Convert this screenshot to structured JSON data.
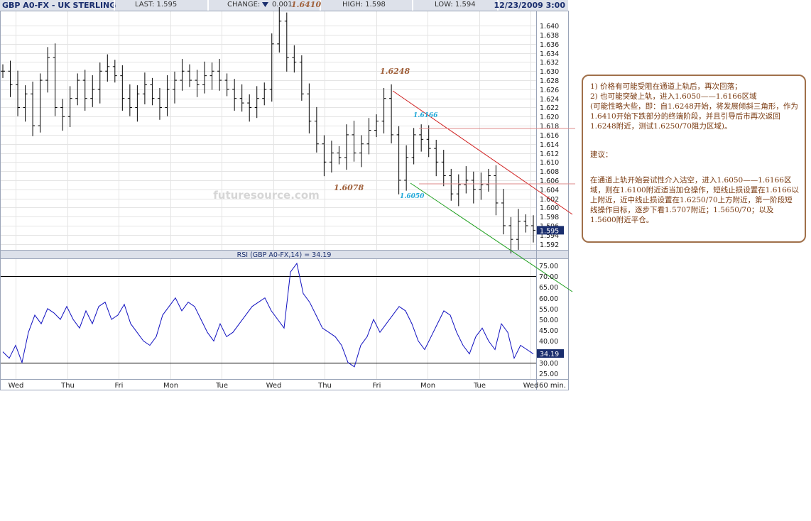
{
  "header": {
    "symbol": "GBP A0-FX - UK STERLING",
    "last": "LAST: 1.595",
    "change_label": "CHANGE:",
    "change_icon": "down-triangle-icon",
    "change_value": "0.001",
    "high": "HIGH: 1.598",
    "low": "LOW: 1.594",
    "datetime": "12/23/2009 3:00"
  },
  "watermark": "futuresource.com",
  "colors": {
    "price": "#000000",
    "rsi": "#1010c0",
    "channel_upper": "#d02020",
    "channel_lower": "#20a020",
    "annotation_brown": "#a0603a",
    "annotation_cyan": "#20a8d8",
    "current_price_box": "#1a2e6e"
  },
  "chart_data": [
    {
      "type": "candlestick",
      "symbol": "GBP A0-FX",
      "interval": "60 min.",
      "ylim": [
        1.591,
        1.643
      ],
      "yticks": [
        "1.640",
        "1.638",
        "1.636",
        "1.634",
        "1.632",
        "1.630",
        "1.628",
        "1.626",
        "1.624",
        "1.622",
        "1.620",
        "1.618",
        "1.616",
        "1.614",
        "1.612",
        "1.610",
        "1.608",
        "1.606",
        "1.604",
        "1.602",
        "1.600",
        "1.598",
        "1.596",
        "1.594",
        "1.592"
      ],
      "x_labels": [
        "Wed",
        "Thu",
        "Fri",
        "Mon",
        "Tue",
        "Wed",
        "Thu",
        "Fri",
        "Mon",
        "Tue",
        "Wed"
      ],
      "interval_label": "60 min.",
      "current_price_label": "1.595",
      "close_series": [
        1.63,
        1.627,
        1.622,
        1.625,
        1.618,
        1.628,
        1.633,
        1.622,
        1.62,
        1.624,
        1.628,
        1.624,
        1.626,
        1.63,
        1.631,
        1.629,
        1.624,
        1.622,
        1.625,
        1.627,
        1.624,
        1.622,
        1.626,
        1.628,
        1.63,
        1.628,
        1.627,
        1.629,
        1.63,
        1.628,
        1.626,
        1.624,
        1.623,
        1.622,
        1.624,
        1.626,
        1.636,
        1.641,
        1.633,
        1.632,
        1.625,
        1.619,
        1.614,
        1.61,
        1.612,
        1.611,
        1.616,
        1.612,
        1.614,
        1.617,
        1.619,
        1.624,
        1.616,
        1.606,
        1.611,
        1.616,
        1.615,
        1.613,
        1.61,
        1.607,
        1.603,
        1.605,
        1.606,
        1.604,
        1.605,
        1.607,
        1.601,
        1.596,
        1.593,
        1.597,
        1.596,
        1.595
      ],
      "annotations": [
        {
          "text": "1.6410",
          "color": "#a0603a"
        },
        {
          "text": "1.6248",
          "color": "#a0603a"
        },
        {
          "text": "1.6078",
          "color": "#a0603a"
        },
        {
          "text": "1.6166",
          "color": "#20a8d8"
        },
        {
          "text": "1.6050",
          "color": "#20a8d8"
        }
      ]
    },
    {
      "type": "line",
      "title": "RSI (GBP A0-FX,14) = 34.19",
      "ylim": [
        23,
        78
      ],
      "yticks": [
        "75.00",
        "70.00",
        "65.00",
        "60.00",
        "55.00",
        "50.00",
        "45.00",
        "40.00",
        "35.00",
        "30.00",
        "25.00"
      ],
      "reference_lines": [
        70,
        30
      ],
      "current_value_label": "34.19",
      "series": [
        {
          "values": [
            35,
            32,
            38,
            30,
            44,
            52,
            48,
            55,
            53,
            50,
            56,
            50,
            46,
            54,
            48,
            56,
            58,
            50,
            52,
            57,
            48,
            44,
            40,
            38,
            42,
            52,
            56,
            60,
            54,
            58,
            56,
            50,
            44,
            40,
            48,
            42,
            44,
            48,
            52,
            56,
            58,
            60,
            54,
            50,
            46,
            72,
            76,
            62,
            58,
            52,
            46,
            44,
            42,
            38,
            30,
            28,
            38,
            42,
            50,
            44,
            48,
            52,
            56,
            54,
            48,
            40,
            36,
            42,
            48,
            54,
            52,
            44,
            38,
            34,
            42,
            46,
            40,
            36,
            48,
            44,
            32,
            38,
            36,
            34
          ]
        }
      ]
    }
  ],
  "note": {
    "line1": "1) 价格有可能受阻在通道上轨后，再次回落；",
    "line2": "2) 也可能突破上轨，进入1.6050——1.6166区域",
    "line3": "(可能性略大些，即：自1.6248开始，将发展倾斜三角形，作为1.6410开始下跌部分的终端阶段，并且引导后市再次返回1.6248附近，测试1.6250/70阻力区域)。",
    "heading": "建议：",
    "advice": "在通道上轨开始尝试性介入沽空，进入1.6050——1.6166区域，则在1.6100附近适当加仓操作，短线止损设置在1.6166以上附近，近中线止损设置在1.6250/70上方附近，第一阶段短线操作目标，逐步下看1.5707附近；1.5650/70；以及1.5600附近平仓。"
  }
}
